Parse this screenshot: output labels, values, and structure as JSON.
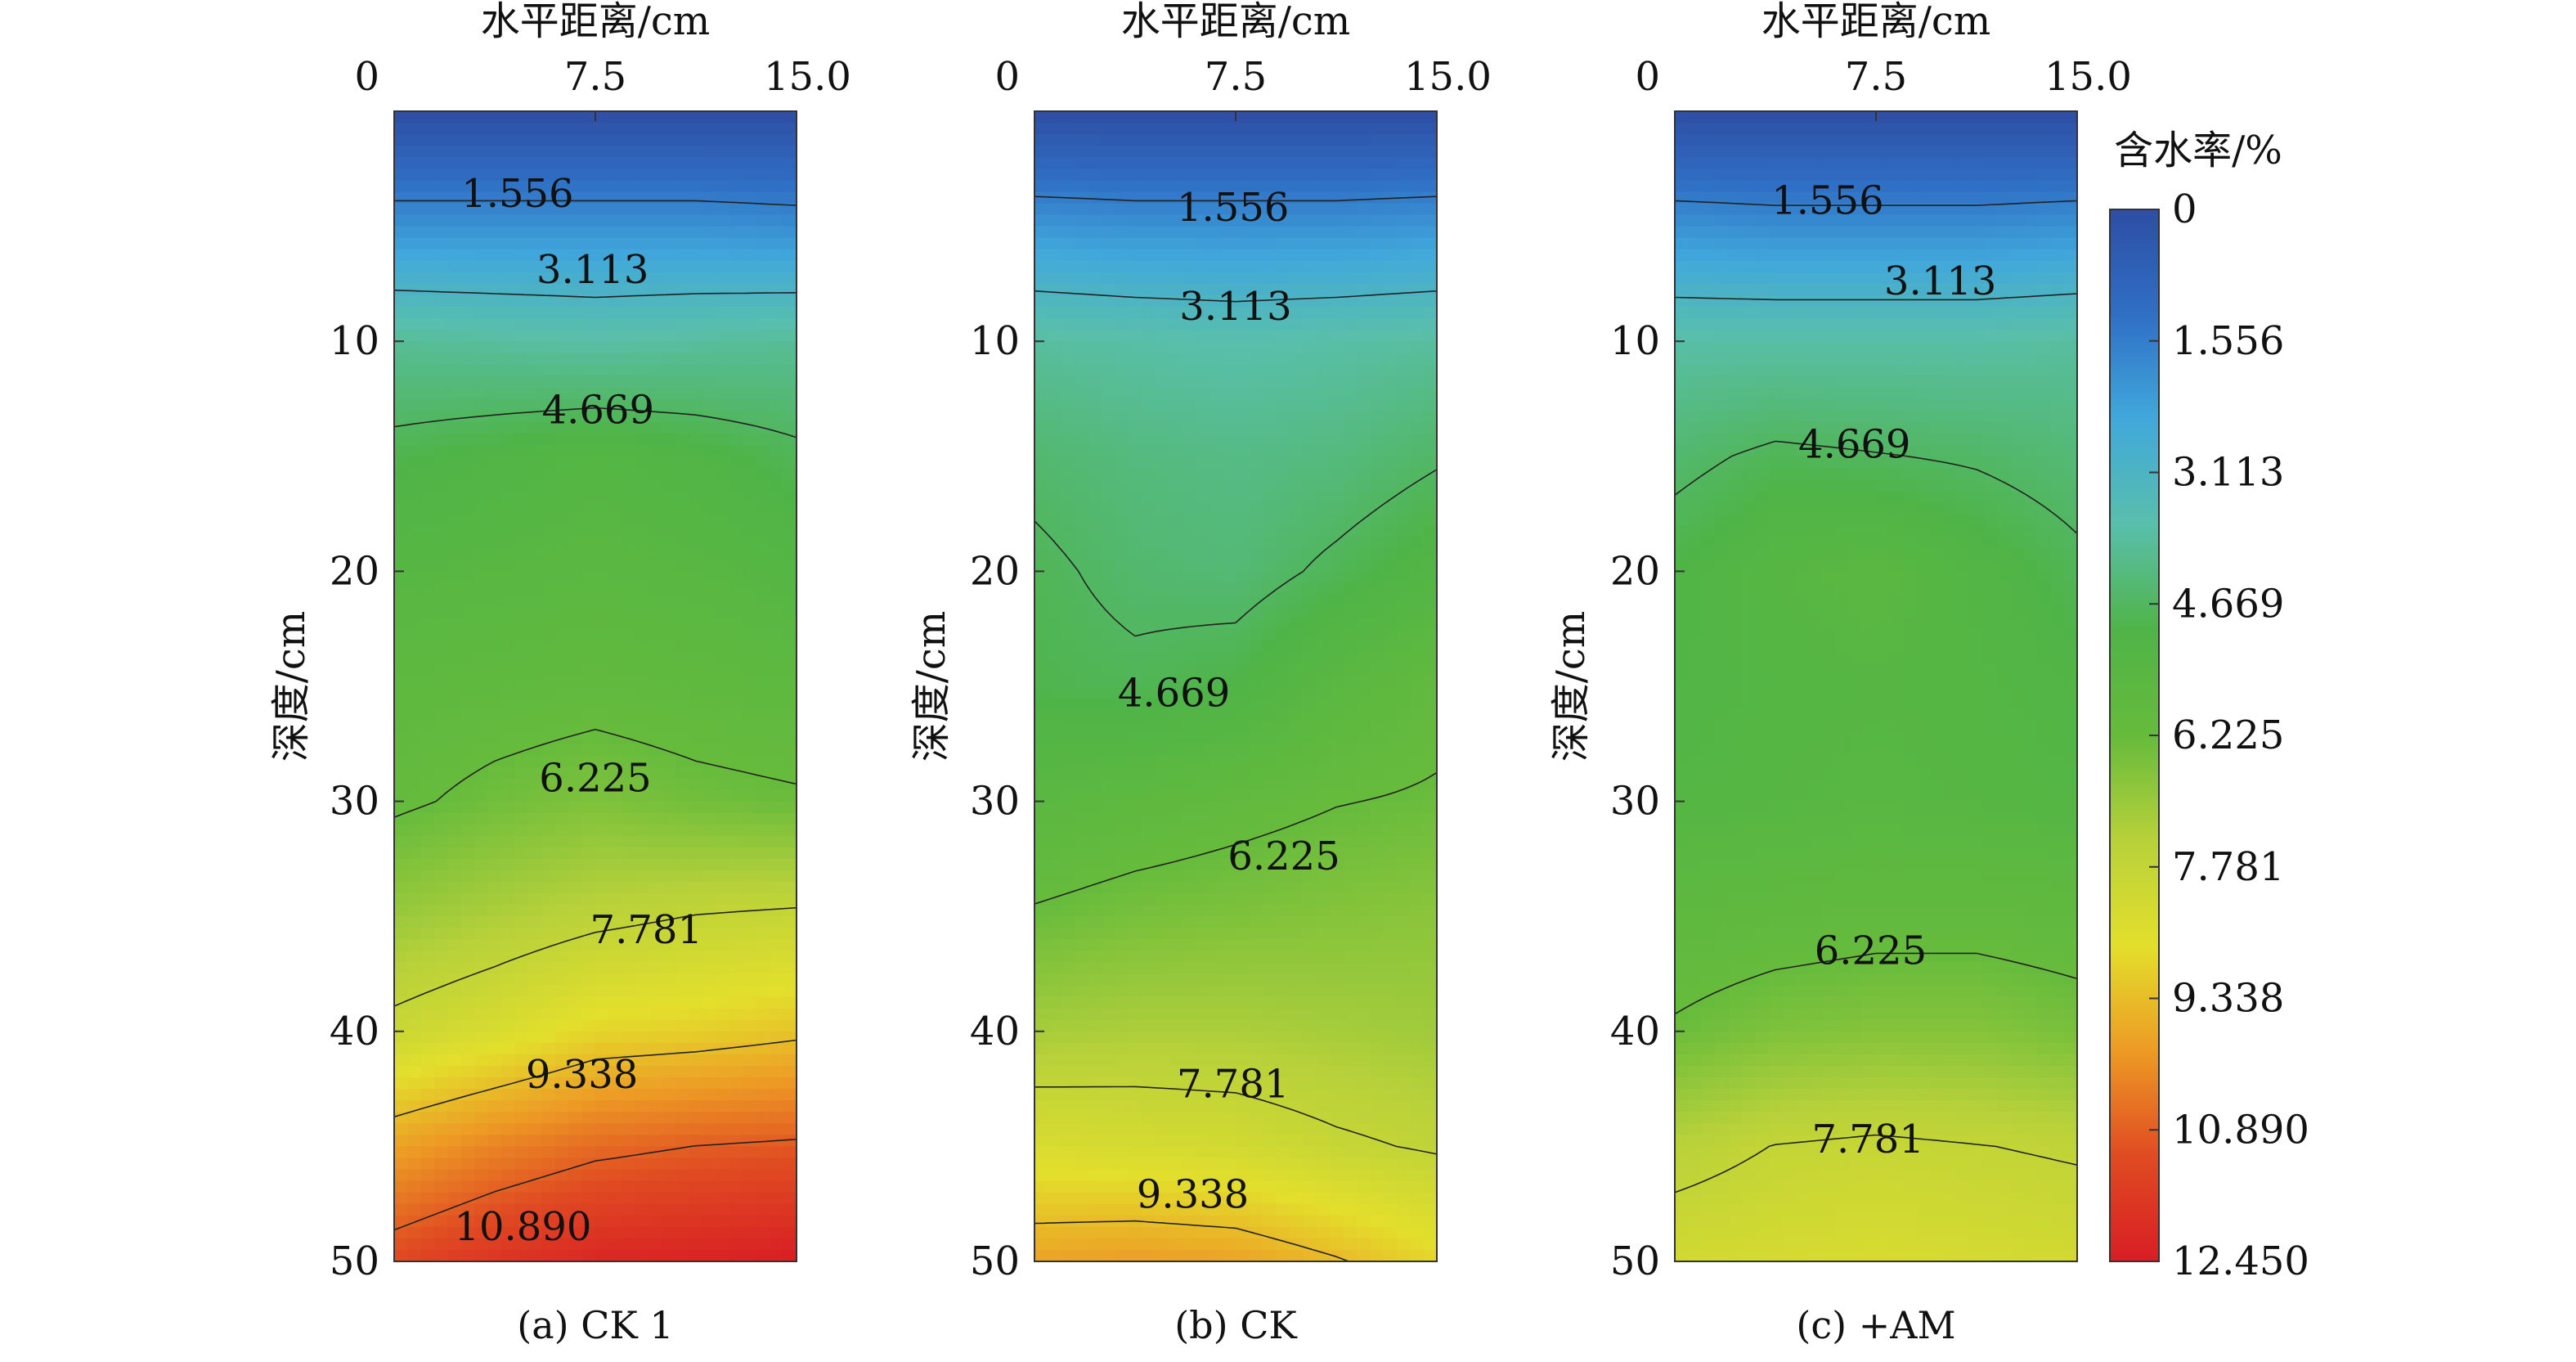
{
  "chart_data": {
    "type": "contour",
    "colorbar": {
      "title": "含水率/%",
      "min": 0,
      "max": 12.45,
      "ticks": [
        "0",
        "1.556",
        "3.113",
        "4.669",
        "6.225",
        "7.781",
        "9.338",
        "10.890",
        "12.450"
      ],
      "colors": [
        "#2e4ea3",
        "#2f6fc5",
        "#41a8db",
        "#59bfab",
        "#4fb447",
        "#66bb3c",
        "#b8d13a",
        "#e3df2c",
        "#ed9a25",
        "#e04b22",
        "#d81e24"
      ]
    },
    "panels": [
      {
        "label": "(a) CK 1",
        "xlabel": "水平距离/cm",
        "ylabel": "深度/cm",
        "xticks": [
          "0",
          "7.5",
          "15.0"
        ],
        "yticks": [
          "10",
          "20",
          "30",
          "40",
          "50"
        ],
        "xlim": [
          0,
          15
        ],
        "ylim": [
          0,
          50
        ],
        "x": [
          0,
          3.75,
          7.5,
          11.25,
          15
        ],
        "depth": [
          0,
          5,
          10,
          15,
          20,
          25,
          30,
          35,
          40,
          45,
          50
        ],
        "values": [
          [
            0,
            0,
            0,
            0,
            0
          ],
          [
            2.0,
            2.0,
            2.0,
            2.0,
            1.9
          ],
          [
            4.0,
            3.9,
            3.8,
            3.9,
            4.0
          ],
          [
            4.9,
            5.1,
            5.3,
            5.1,
            4.8
          ],
          [
            5.4,
            5.5,
            5.6,
            5.5,
            5.3
          ],
          [
            5.8,
            5.9,
            6.0,
            5.9,
            5.8
          ],
          [
            6.1,
            6.4,
            6.6,
            6.4,
            6.3
          ],
          [
            7.0,
            7.3,
            7.6,
            7.8,
            7.9
          ],
          [
            8.0,
            8.4,
            8.9,
            9.0,
            9.2
          ],
          [
            9.8,
            10.3,
            10.7,
            10.9,
            11.0
          ],
          [
            11.3,
            11.8,
            12.2,
            12.3,
            12.45
          ]
        ],
        "contour_labels": [
          {
            "text": "1.556",
            "x": 4.6,
            "y": 3.6
          },
          {
            "text": "3.113",
            "x": 7.4,
            "y": 6.9
          },
          {
            "text": "4.669",
            "x": 7.6,
            "y": 13.0
          },
          {
            "text": "6.225",
            "x": 7.5,
            "y": 29.0
          },
          {
            "text": "7.781",
            "x": 9.4,
            "y": 35.6
          },
          {
            "text": "9.338",
            "x": 7.0,
            "y": 41.9
          },
          {
            "text": "10.890",
            "x": 4.8,
            "y": 48.5
          }
        ]
      },
      {
        "label": "(b) CK",
        "xlabel": "水平距离/cm",
        "ylabel": "深度/cm",
        "xticks": [
          "0",
          "7.5",
          "15.0"
        ],
        "yticks": [
          "10",
          "20",
          "30",
          "40",
          "50"
        ],
        "xlim": [
          0,
          15
        ],
        "ylim": [
          0,
          50
        ],
        "x": [
          0,
          3.75,
          7.5,
          11.25,
          15
        ],
        "depth": [
          0,
          5,
          10,
          15,
          20,
          25,
          30,
          35,
          40,
          45,
          50
        ],
        "values": [
          [
            0,
            0,
            0,
            0,
            0
          ],
          [
            2.1,
            2.0,
            2.0,
            2.0,
            2.1
          ],
          [
            3.9,
            3.8,
            3.7,
            3.8,
            3.9
          ],
          [
            4.5,
            4.3,
            4.2,
            4.3,
            4.6
          ],
          [
            4.8,
            4.5,
            4.4,
            4.8,
            5.2
          ],
          [
            4.9,
            4.8,
            5.0,
            5.6,
            6.0
          ],
          [
            5.6,
            5.8,
            6.0,
            6.2,
            6.3
          ],
          [
            6.3,
            6.5,
            6.6,
            6.7,
            6.8
          ],
          [
            7.2,
            7.3,
            7.3,
            7.2,
            7.1
          ],
          [
            8.4,
            8.3,
            8.2,
            7.9,
            7.7
          ],
          [
            9.8,
            9.9,
            9.8,
            9.4,
            8.9
          ]
        ],
        "contour_labels": [
          {
            "text": "1.556",
            "x": 7.4,
            "y": 4.2
          },
          {
            "text": "3.113",
            "x": 7.5,
            "y": 8.5
          },
          {
            "text": "4.669",
            "x": 5.2,
            "y": 25.3
          },
          {
            "text": "6.225",
            "x": 9.3,
            "y": 32.4
          },
          {
            "text": "7.781",
            "x": 7.4,
            "y": 42.3
          },
          {
            "text": "9.338",
            "x": 5.9,
            "y": 47.1
          }
        ]
      },
      {
        "label": "(c) +AM",
        "xlabel": "水平距离/cm",
        "ylabel": "深度/cm",
        "xticks": [
          "0",
          "7.5",
          "15.0"
        ],
        "yticks": [
          "10",
          "20",
          "30",
          "40",
          "50"
        ],
        "xlim": [
          0,
          15
        ],
        "ylim": [
          0,
          50
        ],
        "x": [
          0,
          3.75,
          7.5,
          11.25,
          15
        ],
        "depth": [
          0,
          5,
          10,
          15,
          20,
          25,
          30,
          35,
          40,
          45,
          50
        ],
        "values": [
          [
            0,
            0,
            0,
            0,
            0
          ],
          [
            2.0,
            1.9,
            1.9,
            1.9,
            2.0
          ],
          [
            3.8,
            3.8,
            3.8,
            3.8,
            3.9
          ],
          [
            4.5,
            4.8,
            4.7,
            4.6,
            4.4
          ],
          [
            5.0,
            5.4,
            5.6,
            5.2,
            4.8
          ],
          [
            5.1,
            5.3,
            5.4,
            5.3,
            5.1
          ],
          [
            5.3,
            5.4,
            5.5,
            5.4,
            5.3
          ],
          [
            5.8,
            5.9,
            6.0,
            6.0,
            5.9
          ],
          [
            6.3,
            6.6,
            6.7,
            6.7,
            6.5
          ],
          [
            7.5,
            7.8,
            7.9,
            7.8,
            7.7
          ],
          [
            8.2,
            8.3,
            8.4,
            8.3,
            8.2
          ]
        ],
        "contour_labels": [
          {
            "text": "1.556",
            "x": 5.7,
            "y": 3.9
          },
          {
            "text": "3.113",
            "x": 9.9,
            "y": 7.4
          },
          {
            "text": "4.669",
            "x": 6.7,
            "y": 14.5
          },
          {
            "text": "6.225",
            "x": 7.3,
            "y": 36.5
          },
          {
            "text": "7.781",
            "x": 7.2,
            "y": 44.7
          }
        ]
      }
    ]
  }
}
